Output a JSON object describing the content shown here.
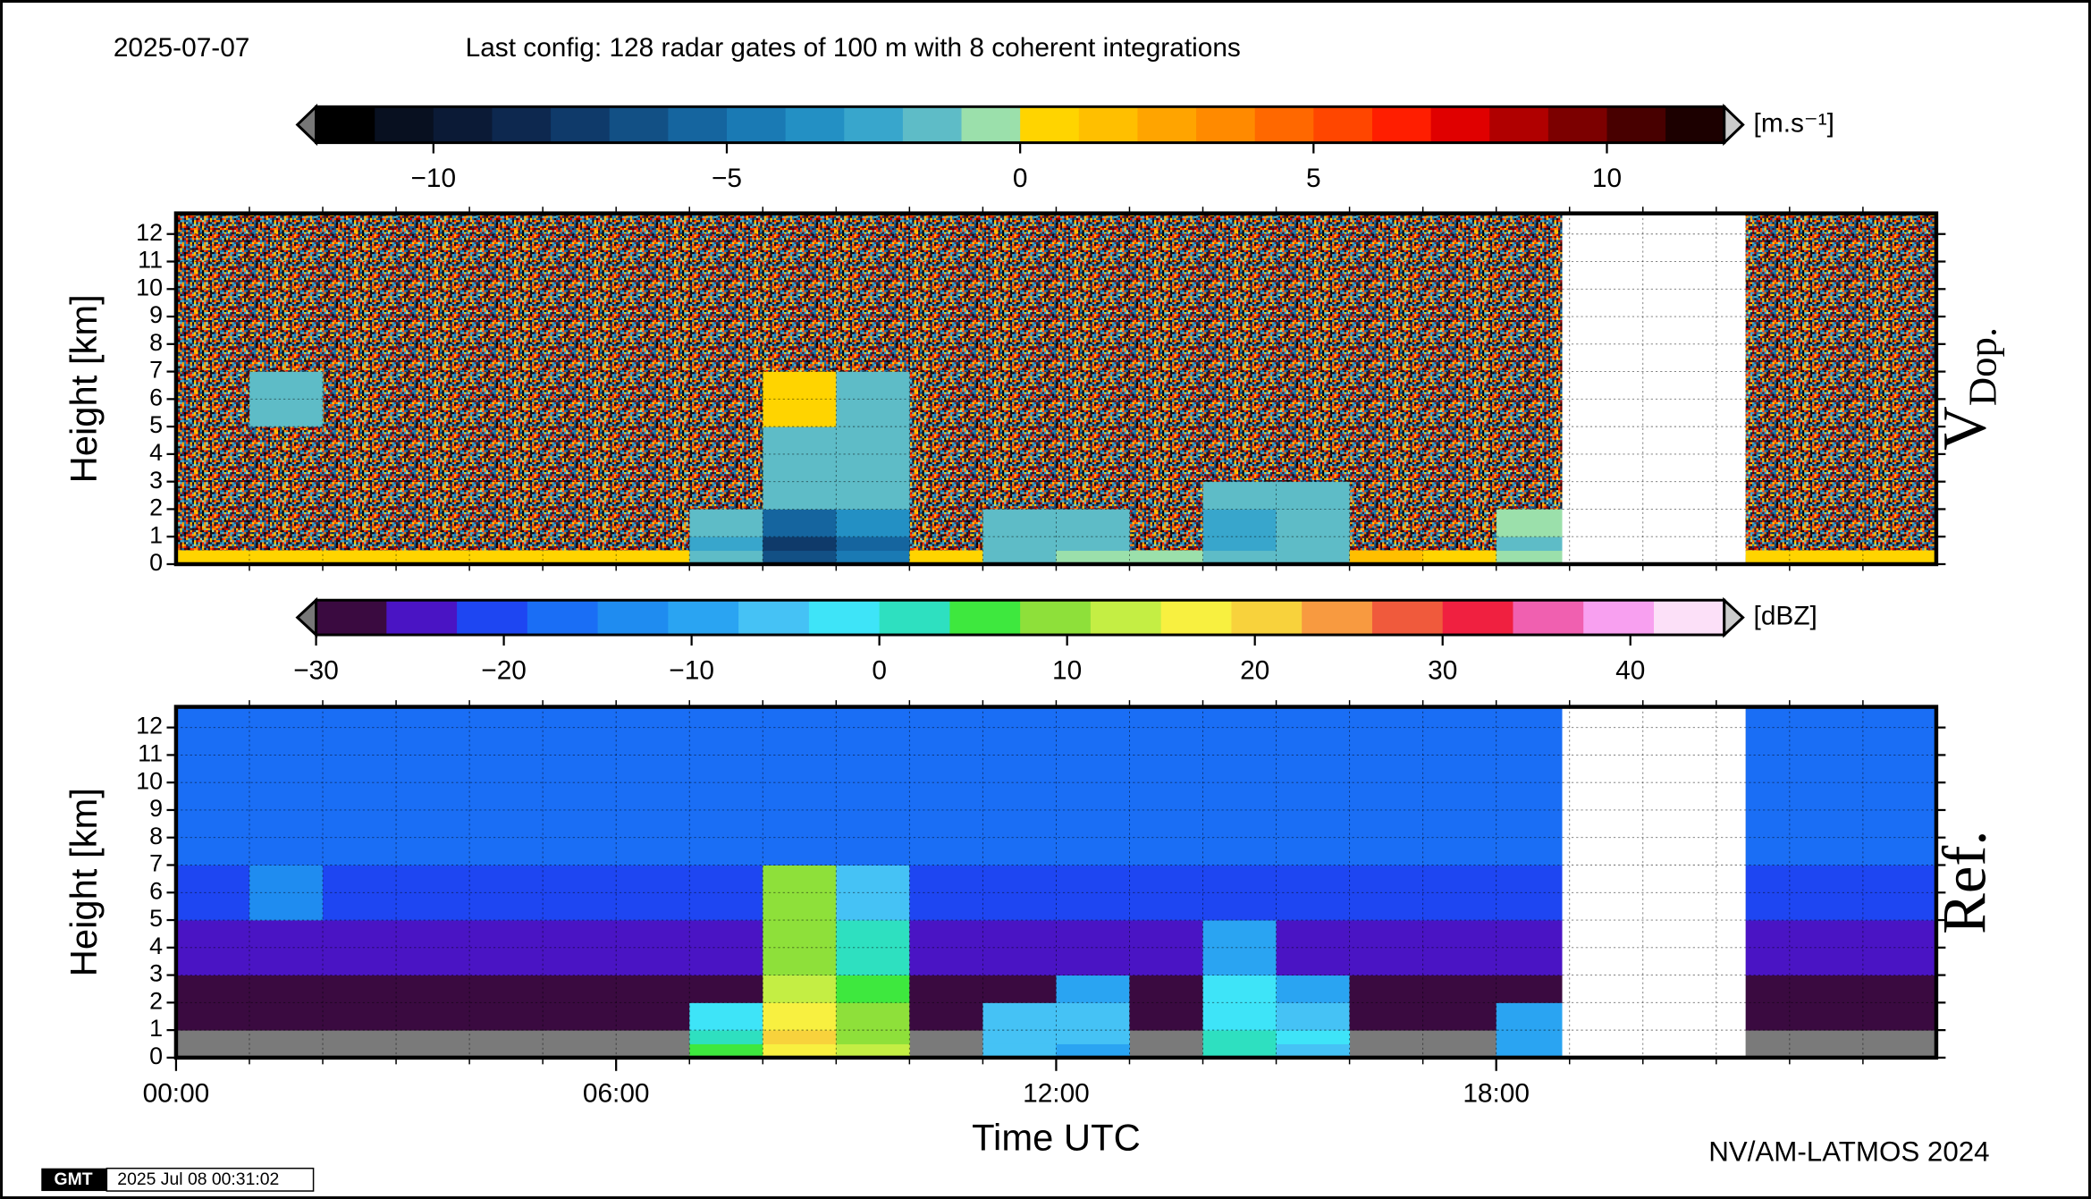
{
  "header": {
    "date": "2025-07-07",
    "config": "Last config: 128 radar gates of 100 m with 8 coherent integrations"
  },
  "chart_data": [
    {
      "type": "heatmap",
      "ylabel": "Height [km]",
      "label": "V",
      "label_sub": "Dop.",
      "xlim": [
        0,
        24
      ],
      "x_minor_step": 1,
      "ylim": [
        0,
        12.75
      ],
      "yticks": [
        0,
        1,
        2,
        3,
        4,
        5,
        6,
        7,
        8,
        9,
        10,
        11,
        12
      ],
      "grid": true,
      "background": "noise",
      "gap": [
        18.9,
        21.4
      ],
      "xbins": [
        0,
        1,
        2,
        3,
        4,
        5,
        6,
        7,
        8,
        9,
        10,
        11,
        12,
        13,
        14,
        15,
        16,
        17,
        18,
        18.9,
        21.4,
        22,
        23,
        24
      ],
      "ybins": [
        0,
        0.5,
        1,
        2,
        3,
        5,
        7,
        12.75
      ],
      "values": [
        [
          0.5,
          0.5,
          0.5,
          0.5,
          0.5,
          0.5,
          0.5,
          -2,
          -7,
          -5,
          0.5,
          -1.5,
          -1,
          -1,
          -2,
          -1.5,
          1,
          0.5,
          -1,
          null,
          0.5,
          0.5,
          0.5
        ],
        [
          null,
          null,
          null,
          null,
          null,
          null,
          null,
          -3,
          -8,
          -6,
          null,
          -2,
          -2,
          null,
          -3,
          -2,
          null,
          null,
          -1.5,
          null,
          null,
          null,
          null
        ],
        [
          null,
          null,
          null,
          null,
          null,
          null,
          null,
          -2,
          -6,
          -4,
          null,
          -2,
          -1.5,
          null,
          -2.5,
          -2,
          null,
          null,
          -1,
          null,
          null,
          null,
          null
        ],
        [
          null,
          null,
          null,
          null,
          null,
          null,
          null,
          null,
          -2,
          -2,
          null,
          null,
          null,
          null,
          -2,
          -1.5,
          null,
          null,
          null,
          null,
          null,
          null,
          null
        ],
        [
          null,
          null,
          null,
          null,
          null,
          null,
          null,
          null,
          -2,
          -1.5,
          null,
          null,
          null,
          null,
          null,
          null,
          null,
          null,
          null,
          null,
          null,
          null,
          null
        ],
        [
          null,
          -2,
          null,
          null,
          null,
          null,
          null,
          null,
          0.5,
          -1.5,
          null,
          null,
          null,
          null,
          null,
          null,
          null,
          null,
          null,
          null,
          null,
          null,
          null
        ],
        [
          null,
          null,
          null,
          null,
          null,
          null,
          null,
          null,
          null,
          null,
          null,
          null,
          null,
          null,
          null,
          null,
          null,
          null,
          null,
          null,
          null,
          null,
          null
        ]
      ],
      "colorbar": {
        "lim": [
          -12,
          12
        ],
        "unit": "[m.s⁻¹]",
        "ticks": [
          {
            "value": -10,
            "label": "−10"
          },
          {
            "value": -5,
            "label": "−5"
          },
          0,
          5,
          10
        ],
        "colors": [
          "#000000",
          "#081020",
          "#0b1a36",
          "#0d284f",
          "#0f3a6a",
          "#125085",
          "#15659f",
          "#1a7ab4",
          "#2390c4",
          "#38a6cc",
          "#5ebcc7",
          "#9be0ab",
          "#ffd400",
          "#ffbf00",
          "#ffa400",
          "#ff8a00",
          "#ff6800",
          "#ff4600",
          "#ff1e00",
          "#e00000",
          "#b00000",
          "#7c0000",
          "#480000",
          "#1c0000"
        ]
      }
    },
    {
      "type": "heatmap",
      "ylabel": "Height [km]",
      "xlabel": "Time UTC",
      "label": "Ref.",
      "xlim": [
        0,
        24
      ],
      "x_minor_step": 1,
      "xticks": [
        {
          "value": 0,
          "label": "00:00"
        },
        {
          "value": 6,
          "label": "06:00"
        },
        {
          "value": 12,
          "label": "12:00"
        },
        {
          "value": 18,
          "label": "18:00"
        }
      ],
      "ylim": [
        0,
        12.75
      ],
      "yticks": [
        0,
        1,
        2,
        3,
        4,
        5,
        6,
        7,
        8,
        9,
        10,
        11,
        12
      ],
      "grid": true,
      "background": "#7a7a7a",
      "gap": [
        18.9,
        21.4
      ],
      "xbins": [
        0,
        1,
        2,
        3,
        4,
        5,
        6,
        7,
        8,
        9,
        10,
        11,
        12,
        13,
        14,
        15,
        16,
        17,
        18,
        18.9,
        21.4,
        22,
        23,
        24
      ],
      "ybins": [
        0,
        0.5,
        1,
        2,
        3,
        5,
        7,
        12.75
      ],
      "values": [
        [
          null,
          null,
          null,
          null,
          null,
          null,
          null,
          5,
          18,
          12,
          null,
          -5,
          -8,
          null,
          0,
          -5,
          null,
          null,
          -8,
          null,
          null,
          null,
          null
        ],
        [
          null,
          null,
          null,
          null,
          null,
          null,
          null,
          0,
          20,
          10,
          null,
          -5,
          -5,
          null,
          0,
          -3,
          null,
          null,
          -10,
          null,
          null,
          null,
          null
        ],
        [
          -28,
          -28,
          -28,
          -28,
          -28,
          -28,
          -28,
          -2,
          18,
          8,
          -28,
          -5,
          -5,
          -28,
          -2,
          -5,
          -28,
          -28,
          -10,
          null,
          -28,
          -28,
          -28
        ],
        [
          -28,
          -28,
          -28,
          -28,
          -28,
          -28,
          -28,
          -28,
          12,
          5,
          -28,
          -28,
          -8,
          -28,
          -3,
          -10,
          -28,
          -28,
          -28,
          null,
          -28,
          -28,
          -28
        ],
        [
          -25,
          -25,
          -25,
          -25,
          -25,
          -25,
          -25,
          -25,
          10,
          0,
          -25,
          -25,
          -25,
          -25,
          -8,
          -25,
          -25,
          -25,
          -25,
          null,
          -25,
          -25,
          -25
        ],
        [
          -22,
          -15,
          -22,
          -22,
          -22,
          -22,
          -22,
          -22,
          8,
          -5,
          -22,
          -22,
          -22,
          -22,
          -22,
          -22,
          -22,
          -22,
          -22,
          null,
          -22,
          -22,
          -22
        ],
        [
          -17,
          -17,
          -17,
          -17,
          -17,
          -17,
          -17,
          -17,
          -17,
          -17,
          -17,
          -17,
          -17,
          -17,
          -17,
          -17,
          -17,
          -17,
          -17,
          null,
          -17,
          -17,
          -17
        ]
      ],
      "colorbar": {
        "lim": [
          -30,
          45
        ],
        "unit": "[dBZ]",
        "ticks": [
          {
            "value": -30,
            "label": "−30"
          },
          {
            "value": -20,
            "label": "−20"
          },
          {
            "value": -10,
            "label": "−10"
          },
          0,
          10,
          20,
          30,
          40
        ],
        "colors": [
          "#3a0a40",
          "#4a14c4",
          "#1e46f2",
          "#1a6ef5",
          "#1f8cf0",
          "#2aa4f2",
          "#45c2f5",
          "#3ee4f8",
          "#2ee0c0",
          "#3ee83e",
          "#8ee03a",
          "#c4ee44",
          "#f8f040",
          "#f8d23c",
          "#f89a40",
          "#f05a3c",
          "#f02040",
          "#f060b0",
          "#f8a0f0",
          "#fce0f8"
        ]
      }
    }
  ],
  "footer": {
    "credit": "NV/AM-LATMOS 2024",
    "logo": "GMT",
    "timestamp": "2025 Jul 08 00:31:02"
  }
}
